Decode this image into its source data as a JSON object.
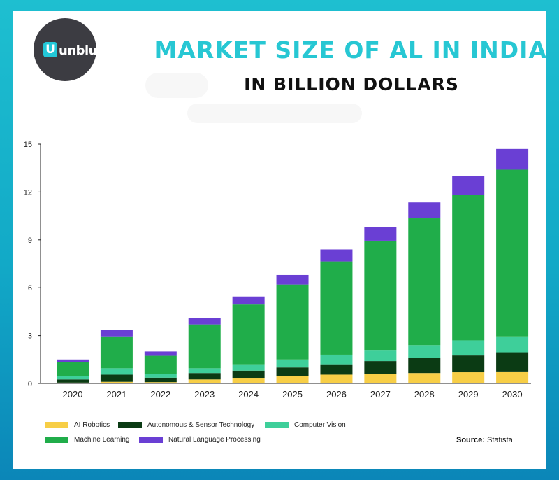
{
  "brand": {
    "logo_letter": "U",
    "logo_text": "unblue"
  },
  "header": {
    "title": "MARKET SIZE OF AL IN INDIA",
    "subtitle": "IN BILLION DOLLARS"
  },
  "source": {
    "label": "Source:",
    "name": "Statista"
  },
  "colors": {
    "ai_robotics": "#f7ce46",
    "autonomous": "#0b3b14",
    "computer_vision": "#3ecf9a",
    "machine_learning": "#20ad4a",
    "nlp": "#6a3fd4"
  },
  "chart_data": {
    "type": "bar",
    "stacked": true,
    "title": "MARKET SIZE OF AL IN INDIA",
    "subtitle": "IN BILLION DOLLARS",
    "xlabel": "",
    "ylabel": "",
    "ylim": [
      0,
      15
    ],
    "yticks": [
      0,
      3,
      6,
      9,
      12,
      15
    ],
    "categories": [
      "2020",
      "2021",
      "2022",
      "2023",
      "2024",
      "2025",
      "2026",
      "2027",
      "2028",
      "2029",
      "2030"
    ],
    "series": [
      {
        "name": "AI Robotics",
        "color": "#f7ce46",
        "values": [
          0.05,
          0.1,
          0.08,
          0.25,
          0.35,
          0.45,
          0.55,
          0.6,
          0.65,
          0.7,
          0.75
        ]
      },
      {
        "name": "Autonomous & Sensor Technology",
        "color": "#0b3b14",
        "values": [
          0.2,
          0.45,
          0.28,
          0.4,
          0.45,
          0.55,
          0.65,
          0.8,
          0.95,
          1.05,
          1.2
        ]
      },
      {
        "name": "Computer Vision",
        "color": "#3ecf9a",
        "values": [
          0.2,
          0.4,
          0.22,
          0.3,
          0.4,
          0.5,
          0.6,
          0.7,
          0.8,
          0.95,
          1.0
        ]
      },
      {
        "name": "Machine Learning",
        "color": "#20ad4a",
        "values": [
          0.9,
          2.0,
          1.15,
          2.75,
          3.75,
          4.7,
          5.85,
          6.85,
          7.95,
          9.1,
          10.45
        ]
      },
      {
        "name": "Natural Language Processing",
        "color": "#6a3fd4",
        "values": [
          0.15,
          0.4,
          0.27,
          0.4,
          0.5,
          0.6,
          0.75,
          0.85,
          1.0,
          1.2,
          1.3
        ]
      }
    ],
    "legend_position": "bottom-left"
  }
}
